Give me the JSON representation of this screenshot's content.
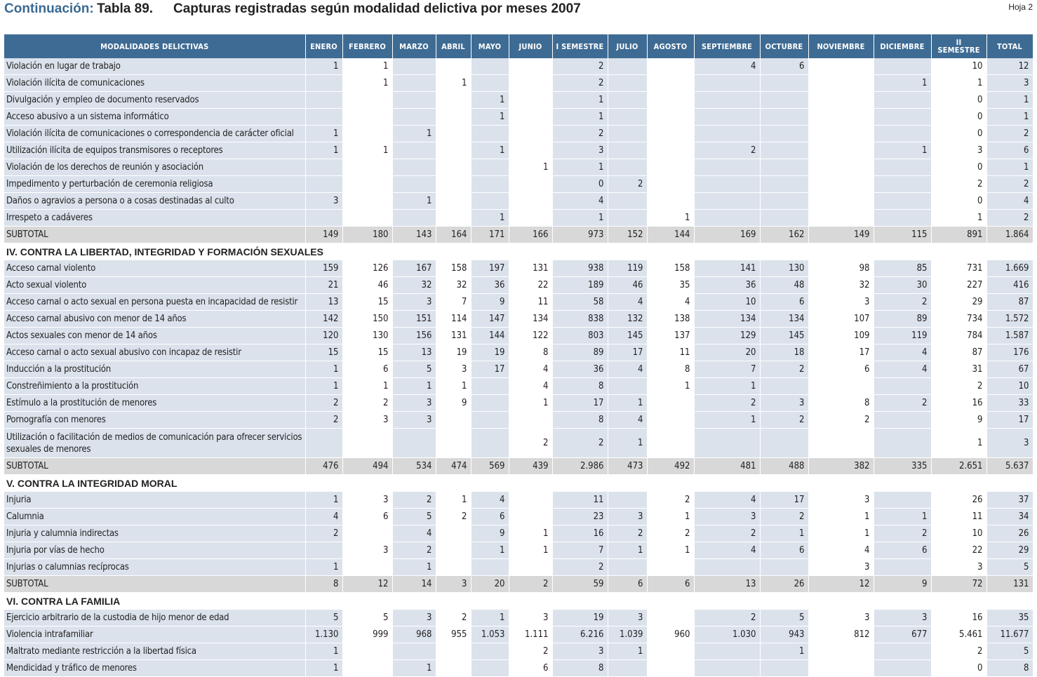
{
  "title": {
    "prefix": "Continuación:",
    "table_no": "Tabla 89.",
    "text": "Capturas registradas según modalidad delictiva por meses 2007",
    "sheet": "Hoja 2"
  },
  "columns": [
    "MODALIDADES DELICTIVAS",
    "ENERO",
    "FEBRERO",
    "MARZO",
    "ABRIL",
    "MAYO",
    "JUNIO",
    "I SEMESTRE",
    "JULIO",
    "AGOSTO",
    "SEPTIEMBRE",
    "OCTUBRE",
    "NOVIEMBRE",
    "DICIEMBRE",
    "II SEMESTRE",
    "TOTAL"
  ],
  "rows": [
    {
      "type": "row",
      "label": "Violación en lugar de trabajo",
      "values": [
        "1",
        "1",
        "",
        "",
        "",
        "",
        "2",
        "",
        "",
        "4",
        "6",
        "",
        "",
        "10",
        "12"
      ]
    },
    {
      "type": "row",
      "label": "Violación ilícita de comunicaciones",
      "values": [
        "",
        "1",
        "",
        "1",
        "",
        "",
        "2",
        "",
        "",
        "",
        "",
        "",
        "1",
        "1",
        "3"
      ]
    },
    {
      "type": "row",
      "label": "Divulgación y empleo de documento reservados",
      "values": [
        "",
        "",
        "",
        "",
        "1",
        "",
        "1",
        "",
        "",
        "",
        "",
        "",
        "",
        "0",
        "1"
      ]
    },
    {
      "type": "row",
      "label": "Acceso abusivo a un sistema informático",
      "values": [
        "",
        "",
        "",
        "",
        "1",
        "",
        "1",
        "",
        "",
        "",
        "",
        "",
        "",
        "0",
        "1"
      ]
    },
    {
      "type": "row",
      "label": "Violación ilícita de comunicaciones o correspondencia de carácter oficial",
      "values": [
        "1",
        "",
        "1",
        "",
        "",
        "",
        "2",
        "",
        "",
        "",
        "",
        "",
        "",
        "0",
        "2"
      ]
    },
    {
      "type": "row",
      "label": "Utilización ilícita de equipos transmisores o receptores",
      "values": [
        "1",
        "1",
        "",
        "",
        "1",
        "",
        "3",
        "",
        "",
        "2",
        "",
        "",
        "1",
        "3",
        "6"
      ]
    },
    {
      "type": "row",
      "label": "Violación de los derechos de reunión y asociación",
      "values": [
        "",
        "",
        "",
        "",
        "",
        "1",
        "1",
        "",
        "",
        "",
        "",
        "",
        "",
        "0",
        "1"
      ]
    },
    {
      "type": "row",
      "label": "Impedimento y perturbación de ceremonia religiosa",
      "values": [
        "",
        "",
        "",
        "",
        "",
        "",
        "0",
        "2",
        "",
        "",
        "",
        "",
        "",
        "2",
        "2"
      ]
    },
    {
      "type": "row",
      "label": "Daños o agravios a persona o a cosas destinadas al culto",
      "values": [
        "3",
        "",
        "1",
        "",
        "",
        "",
        "4",
        "",
        "",
        "",
        "",
        "",
        "",
        "0",
        "4"
      ]
    },
    {
      "type": "row",
      "label": "Irrespeto a cadáveres",
      "values": [
        "",
        "",
        "",
        "",
        "1",
        "",
        "1",
        "",
        "1",
        "",
        "",
        "",
        "",
        "1",
        "2"
      ]
    },
    {
      "type": "sub",
      "label": "SUBTOTAL",
      "values": [
        "149",
        "180",
        "143",
        "164",
        "171",
        "166",
        "973",
        "152",
        "144",
        "169",
        "162",
        "149",
        "115",
        "891",
        "1.864"
      ]
    },
    {
      "type": "sec",
      "label": "IV. CONTRA LA LIBERTAD, INTEGRIDAD Y FORMACIÓN SEXUALES"
    },
    {
      "type": "row",
      "label": "Acceso carnal violento",
      "values": [
        "159",
        "126",
        "167",
        "158",
        "197",
        "131",
        "938",
        "119",
        "158",
        "141",
        "130",
        "98",
        "85",
        "731",
        "1.669"
      ]
    },
    {
      "type": "row",
      "label": "Acto sexual violento",
      "values": [
        "21",
        "46",
        "32",
        "32",
        "36",
        "22",
        "189",
        "46",
        "35",
        "36",
        "48",
        "32",
        "30",
        "227",
        "416"
      ]
    },
    {
      "type": "row",
      "label": "Acceso carnal o acto sexual en persona puesta en incapacidad de resistir",
      "values": [
        "13",
        "15",
        "3",
        "7",
        "9",
        "11",
        "58",
        "4",
        "4",
        "10",
        "6",
        "3",
        "2",
        "29",
        "87"
      ]
    },
    {
      "type": "row",
      "label": "Acceso carnal abusivo con menor de 14 años",
      "values": [
        "142",
        "150",
        "151",
        "114",
        "147",
        "134",
        "838",
        "132",
        "138",
        "134",
        "134",
        "107",
        "89",
        "734",
        "1.572"
      ]
    },
    {
      "type": "row",
      "label": "Actos sexuales con menor de 14 años",
      "values": [
        "120",
        "130",
        "156",
        "131",
        "144",
        "122",
        "803",
        "145",
        "137",
        "129",
        "145",
        "109",
        "119",
        "784",
        "1.587"
      ]
    },
    {
      "type": "row",
      "label": "Acceso carnal o acto sexual abusivo con incapaz de resistir",
      "values": [
        "15",
        "15",
        "13",
        "19",
        "19",
        "8",
        "89",
        "17",
        "11",
        "20",
        "18",
        "17",
        "4",
        "87",
        "176"
      ]
    },
    {
      "type": "row",
      "label": "Inducción a la prostitución",
      "values": [
        "1",
        "6",
        "5",
        "3",
        "17",
        "4",
        "36",
        "4",
        "8",
        "7",
        "2",
        "6",
        "4",
        "31",
        "67"
      ]
    },
    {
      "type": "row",
      "label": "Constreñimiento a la prostitución",
      "values": [
        "1",
        "1",
        "1",
        "1",
        "",
        "4",
        "8",
        "",
        "1",
        "1",
        "",
        "",
        "",
        "2",
        "10"
      ]
    },
    {
      "type": "row",
      "label": "Estímulo a la prostitución de menores",
      "values": [
        "2",
        "2",
        "3",
        "9",
        "",
        "1",
        "17",
        "1",
        "",
        "2",
        "3",
        "8",
        "2",
        "16",
        "33"
      ]
    },
    {
      "type": "row",
      "label": "Pornografía con menores",
      "values": [
        "2",
        "3",
        "3",
        "",
        "",
        "",
        "8",
        "4",
        "",
        "1",
        "2",
        "2",
        "",
        "9",
        "17"
      ]
    },
    {
      "type": "tall",
      "label": "Utilización o facilitación de medios de comunicación para ofrecer servicios sexuales de menores",
      "values": [
        "",
        "",
        "",
        "",
        "",
        "2",
        "2",
        "1",
        "",
        "",
        "",
        "",
        "",
        "1",
        "3"
      ]
    },
    {
      "type": "sub",
      "label": "SUBTOTAL",
      "values": [
        "476",
        "494",
        "534",
        "474",
        "569",
        "439",
        "2.986",
        "473",
        "492",
        "481",
        "488",
        "382",
        "335",
        "2.651",
        "5.637"
      ]
    },
    {
      "type": "sec",
      "label": "V. CONTRA LA INTEGRIDAD MORAL"
    },
    {
      "type": "row",
      "label": "Injuria",
      "values": [
        "1",
        "3",
        "2",
        "1",
        "4",
        "",
        "11",
        "",
        "2",
        "4",
        "17",
        "3",
        "",
        "26",
        "37"
      ]
    },
    {
      "type": "row",
      "label": "Calumnia",
      "values": [
        "4",
        "6",
        "5",
        "2",
        "6",
        "",
        "23",
        "3",
        "1",
        "3",
        "2",
        "1",
        "1",
        "11",
        "34"
      ]
    },
    {
      "type": "row",
      "label": "Injuria y calumnia indirectas",
      "values": [
        "2",
        "",
        "4",
        "",
        "9",
        "1",
        "16",
        "2",
        "2",
        "2",
        "1",
        "1",
        "2",
        "10",
        "26"
      ]
    },
    {
      "type": "row",
      "label": "Injuria por vías de hecho",
      "values": [
        "",
        "3",
        "2",
        "",
        "1",
        "1",
        "7",
        "1",
        "1",
        "4",
        "6",
        "4",
        "6",
        "22",
        "29"
      ]
    },
    {
      "type": "row",
      "label": "Injurias o calumnias recíprocas",
      "values": [
        "1",
        "",
        "1",
        "",
        "",
        "",
        "2",
        "",
        "",
        "",
        "",
        "3",
        "",
        "3",
        "5"
      ]
    },
    {
      "type": "sub",
      "label": "SUBTOTAL",
      "values": [
        "8",
        "12",
        "14",
        "3",
        "20",
        "2",
        "59",
        "6",
        "6",
        "13",
        "26",
        "12",
        "9",
        "72",
        "131"
      ]
    },
    {
      "type": "sec",
      "label": "VI. CONTRA LA FAMILIA"
    },
    {
      "type": "row",
      "label": "Ejercicio arbitrario de la custodia de hijo menor de edad",
      "values": [
        "5",
        "5",
        "3",
        "2",
        "1",
        "3",
        "19",
        "3",
        "",
        "2",
        "5",
        "3",
        "3",
        "16",
        "35"
      ]
    },
    {
      "type": "row",
      "label": "Violencia intrafamiliar",
      "values": [
        "1.130",
        "999",
        "968",
        "955",
        "1.053",
        "1.111",
        "6.216",
        "1.039",
        "960",
        "1.030",
        "943",
        "812",
        "677",
        "5.461",
        "11.677"
      ]
    },
    {
      "type": "row",
      "label": "Maltrato mediante restricción a la libertad física",
      "values": [
        "1",
        "",
        "",
        "",
        "",
        "2",
        "3",
        "1",
        "",
        "",
        "1",
        "",
        "",
        "2",
        "5"
      ]
    },
    {
      "type": "row",
      "label": "Mendicidad y tráfico de menores",
      "values": [
        "1",
        "",
        "1",
        "",
        "",
        "6",
        "8",
        "",
        "",
        "",
        "",
        "",
        "",
        "0",
        "8"
      ]
    }
  ]
}
